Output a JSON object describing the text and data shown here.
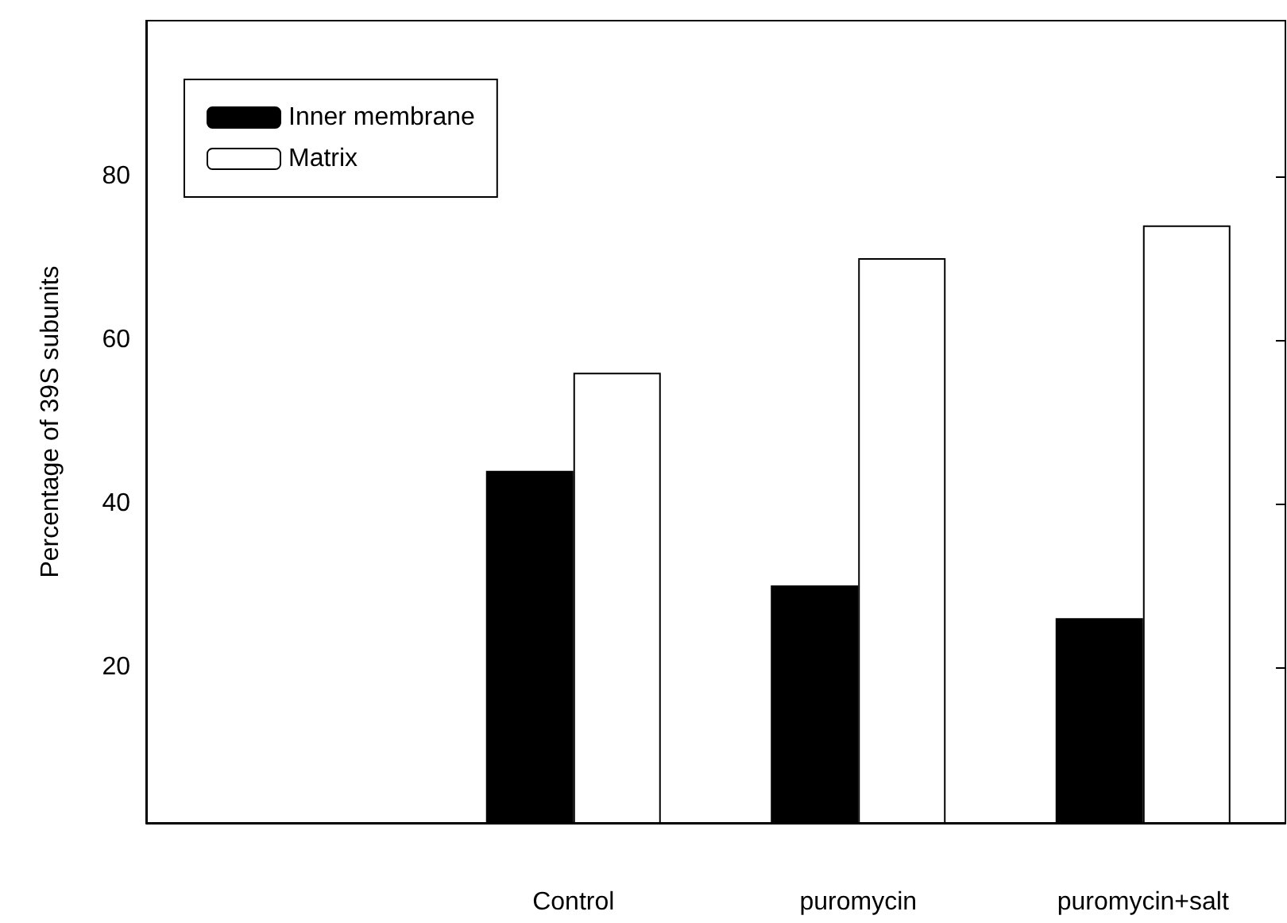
{
  "chart_data": {
    "type": "bar",
    "ylabel": "Percentage of 39S subunits",
    "categories": [
      null,
      "Control",
      "puromycin",
      "puromycin+salt"
    ],
    "series": [
      {
        "name": "Inner membrane",
        "color": "#000000",
        "values": [
          null,
          44,
          30,
          26
        ]
      },
      {
        "name": "Matrix",
        "color": "#ffffff",
        "values": [
          null,
          56,
          70,
          74
        ]
      }
    ],
    "ylim": [
      1,
      99
    ],
    "yticks": [
      20,
      40,
      60,
      80
    ],
    "grid": false,
    "legend": "top left"
  }
}
